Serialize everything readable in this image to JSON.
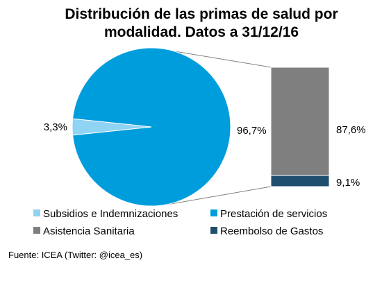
{
  "chart_data": {
    "type": "pie",
    "title_line1": "Distribución de las primas de salud por",
    "title_line2": "modalidad. Datos a 31/12/16",
    "pie": {
      "slices": [
        {
          "name": "Prestación de servicios",
          "value": 96.7,
          "label": "96,7%",
          "color": "#009ddc"
        },
        {
          "name": "Subsidios e Indemnizaciones",
          "value": 3.3,
          "label": "3,3%",
          "color": "#8fd3f5"
        }
      ]
    },
    "breakdown_bar": {
      "of": "Prestación de servicios",
      "segments": [
        {
          "name": "Asistencia Sanitaria",
          "value": 87.6,
          "label": "87,6%",
          "color": "#7f7f7f"
        },
        {
          "name": "Reembolso de Gastos",
          "value": 9.1,
          "label": "9,1%",
          "color": "#1f4e6e"
        }
      ]
    },
    "legend": {
      "placement": "bottom",
      "items": [
        {
          "label": "Subsidios e Indemnizaciones",
          "color": "#8fd3f5"
        },
        {
          "label": "Prestación de servicios",
          "color": "#009ddc"
        },
        {
          "label": "Asistencia Sanitaria",
          "color": "#7f7f7f"
        },
        {
          "label": "Reembolso de Gastos",
          "color": "#1f4e6e"
        }
      ]
    }
  },
  "source": "Fuente: ICEA (Twitter: @icea_es)"
}
